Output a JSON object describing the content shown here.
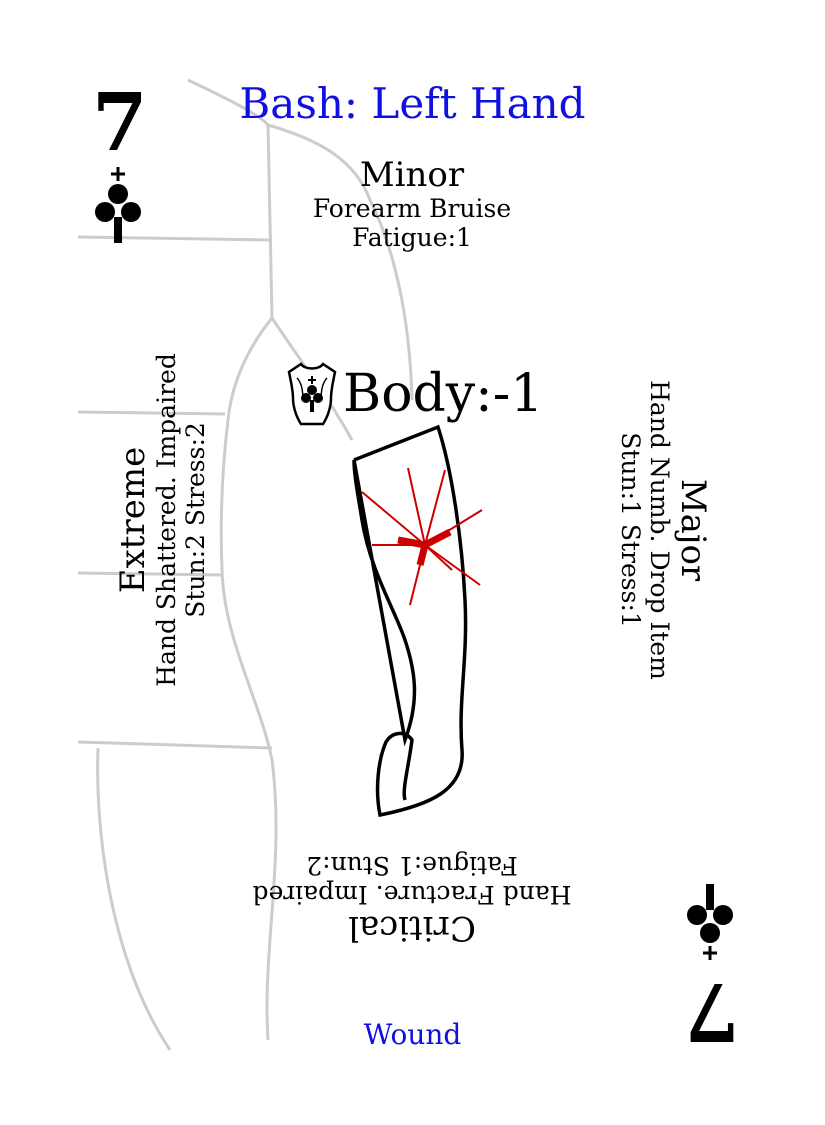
{
  "card": {
    "title": "Bash: Left Hand",
    "rank": "7",
    "suit_icon": "club-icon",
    "footer_label": "Wound",
    "accent_color": "#1010e0",
    "wound_color": "#cc0000"
  },
  "body_modifier": {
    "icon": "torso-club-icon",
    "text": "Body:-1"
  },
  "severities": {
    "minor": {
      "label": "Minor",
      "effect": "Forearm Bruise",
      "stats": "Fatigue:1"
    },
    "major": {
      "label": "Major",
      "effect": "Hand Numb. Drop Item",
      "stats": "Stun:1 Stress:1"
    },
    "critical": {
      "label": "Critical",
      "effect": "Hand Fracture. Impaired",
      "stats": "Fatigue:1 Stun:2"
    },
    "extreme": {
      "label": "Extreme",
      "effect": "Hand Shattered. Impaired",
      "stats": "Stun:2 Stress:2"
    }
  }
}
